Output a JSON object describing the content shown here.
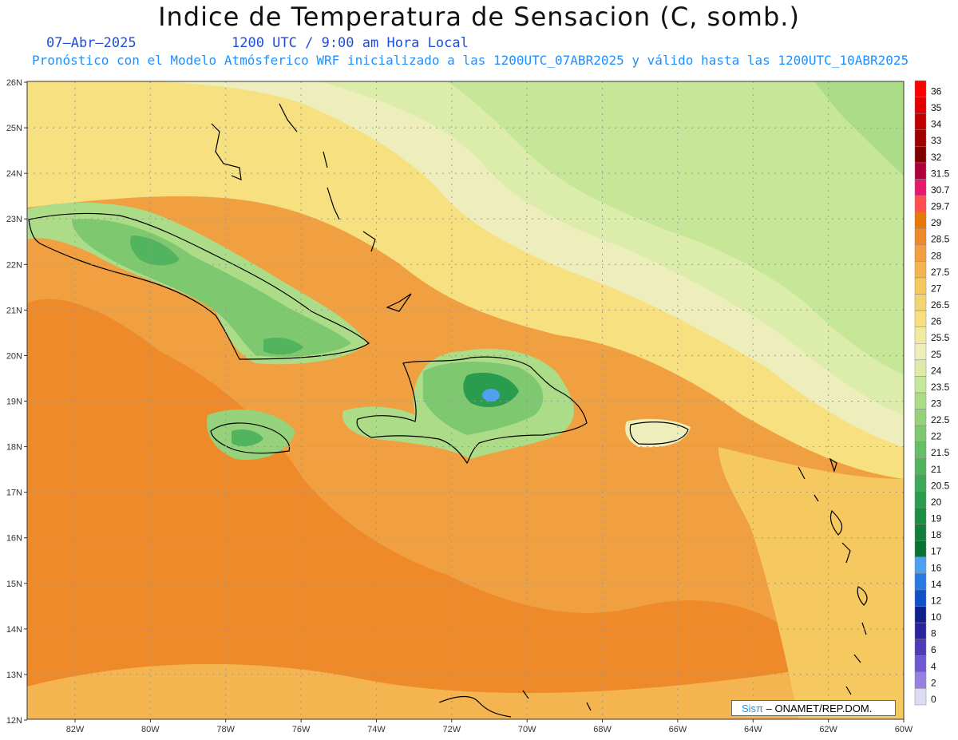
{
  "title": "Indice de Temperatura de Sensacion (C, somb.)",
  "date": "07–Abr–2025",
  "time": "1200 UTC / 9:00 am Hora Local",
  "forecast_line": "Pronóstico con el Modelo Atmósferico WRF inicializado a las 1200UTC_07ABR2025 y válido hasta las  1200UTC_10ABR2025",
  "credit": {
    "logo": "Sisπ",
    "text": " – ONAMET/REP.DOM."
  },
  "lat_labels": [
    "26N",
    "25N",
    "24N",
    "23N",
    "22N",
    "21N",
    "20N",
    "19N",
    "18N",
    "17N",
    "16N",
    "15N",
    "14N",
    "13N",
    "12N"
  ],
  "lon_labels": [
    "82W",
    "80W",
    "78W",
    "76W",
    "74W",
    "72W",
    "70W",
    "68W",
    "66W",
    "64W",
    "62W",
    "60W"
  ],
  "legend": {
    "labels": [
      "36",
      "35",
      "34",
      "33",
      "32",
      "31.5",
      "30.7",
      "29.7",
      "29",
      "28.5",
      "28",
      "27.5",
      "27",
      "26.5",
      "26",
      "25.5",
      "25",
      "24",
      "23.5",
      "23",
      "22.5",
      "22",
      "21.5",
      "21",
      "20.5",
      "20",
      "19",
      "18",
      "17",
      "16",
      "14",
      "12",
      "10",
      "8",
      "6",
      "4",
      "2",
      "0"
    ],
    "colors": [
      "#ff0000",
      "#e00000",
      "#c00000",
      "#a00000",
      "#800000",
      "#b0003c",
      "#e6196e",
      "#ff5050",
      "#e8780a",
      "#ee8a2a",
      "#f0a040",
      "#f4b450",
      "#f6c860",
      "#f4d470",
      "#f6e080",
      "#f2eaa0",
      "#eeeebc",
      "#dcecaa",
      "#c6e698",
      "#acdc88",
      "#96d27c",
      "#7ec870",
      "#66be66",
      "#52b45e",
      "#3ea856",
      "#2a9c4e",
      "#1c8e44",
      "#12803c",
      "#0a7234",
      "#50a0f0",
      "#2878e6",
      "#1050c8",
      "#10208a",
      "#2a249c",
      "#4e3cb8",
      "#7058d0",
      "#9680e0",
      "#dcdcf4"
    ]
  },
  "contour_palette": {
    "sea_hot": "#ee8a2a",
    "sea_warm": "#f0a040",
    "sea_mild": "#f4b450",
    "sea_mid": "#f6c860",
    "north_warm": "#f4d470",
    "north_pale": "#f6e080",
    "north_cool": "#eeeebc",
    "north_green1": "#dcecaa",
    "north_green2": "#c6e698",
    "land_green1": "#acdc88",
    "land_green2": "#96d27c",
    "land_green3": "#7ec870",
    "land_green4": "#52b45e",
    "land_green5": "#2a9c4e",
    "cold_spot": "#50a0f0",
    "coast": "#000000",
    "grid": "#9a9a9a"
  }
}
